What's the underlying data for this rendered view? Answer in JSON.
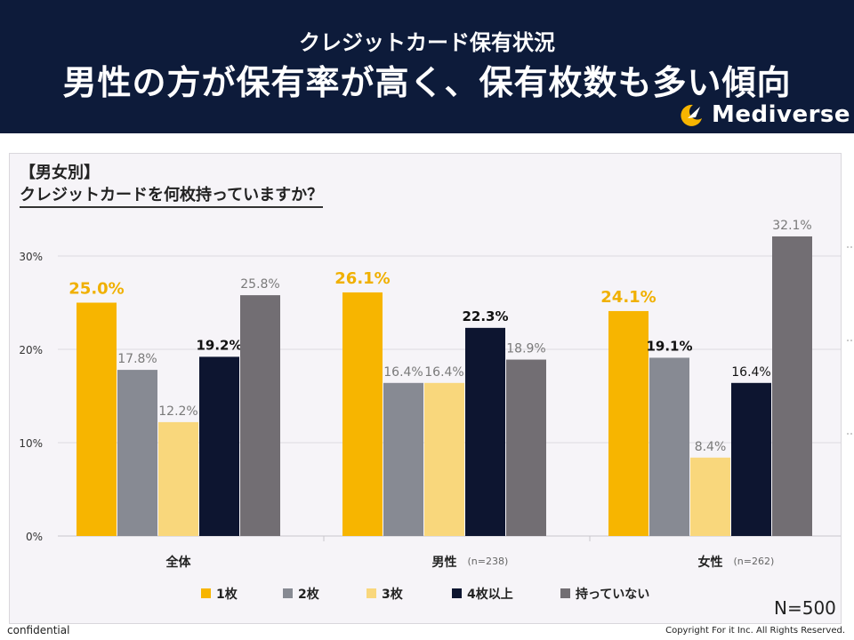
{
  "header": {
    "subtitle": "クレジットカード保有状況",
    "title": "男性の方が保有率が高く、保有枚数も多い傾向",
    "brand": "Mediverse"
  },
  "question": {
    "tag": "【男女別】",
    "text": "クレジットカードを何枚持っていますか？"
  },
  "n_total": "N=500",
  "footer": {
    "left": "confidential",
    "right": "Copyright For it Inc. All Rights Reserved."
  },
  "colors": {
    "header_bg": "#0d1b3a",
    "accent_gold": "#f7b500"
  },
  "chart_data": {
    "type": "bar",
    "categories": [
      "全体",
      "男性",
      "女性"
    ],
    "category_notes": [
      "",
      "(n=238)",
      "(n=262)"
    ],
    "series": [
      {
        "name": "1枚",
        "color": "#f7b500",
        "label_color": "#f0b000",
        "label_bold": true,
        "values": [
          25.0,
          26.1,
          24.1
        ]
      },
      {
        "name": "2枚",
        "color": "#878a93",
        "label_color": "#7a7a7a",
        "label_bold": false,
        "values": [
          17.8,
          16.4,
          19.1
        ],
        "bold_labels": [
          false,
          false,
          true
        ]
      },
      {
        "name": "3枚",
        "color": "#f9d77c",
        "label_color": "#7a7a7a",
        "label_bold": false,
        "values": [
          12.2,
          16.4,
          8.4
        ]
      },
      {
        "name": "4枚以上",
        "color": "#0d1530",
        "label_color": "#111111",
        "label_bold": true,
        "values": [
          19.2,
          22.3,
          16.4
        ],
        "bold_labels": [
          true,
          true,
          false
        ]
      },
      {
        "name": "持っていない",
        "color": "#726e73",
        "label_color": "#7a7a7a",
        "label_bold": false,
        "values": [
          25.8,
          18.9,
          32.1
        ]
      }
    ],
    "ytick_labels": [
      "0%",
      "10%",
      "20%",
      "30%"
    ],
    "yticks": [
      0,
      10,
      20,
      30
    ],
    "ylim": [
      0,
      35
    ],
    "grid": true,
    "legend": "bottom"
  }
}
